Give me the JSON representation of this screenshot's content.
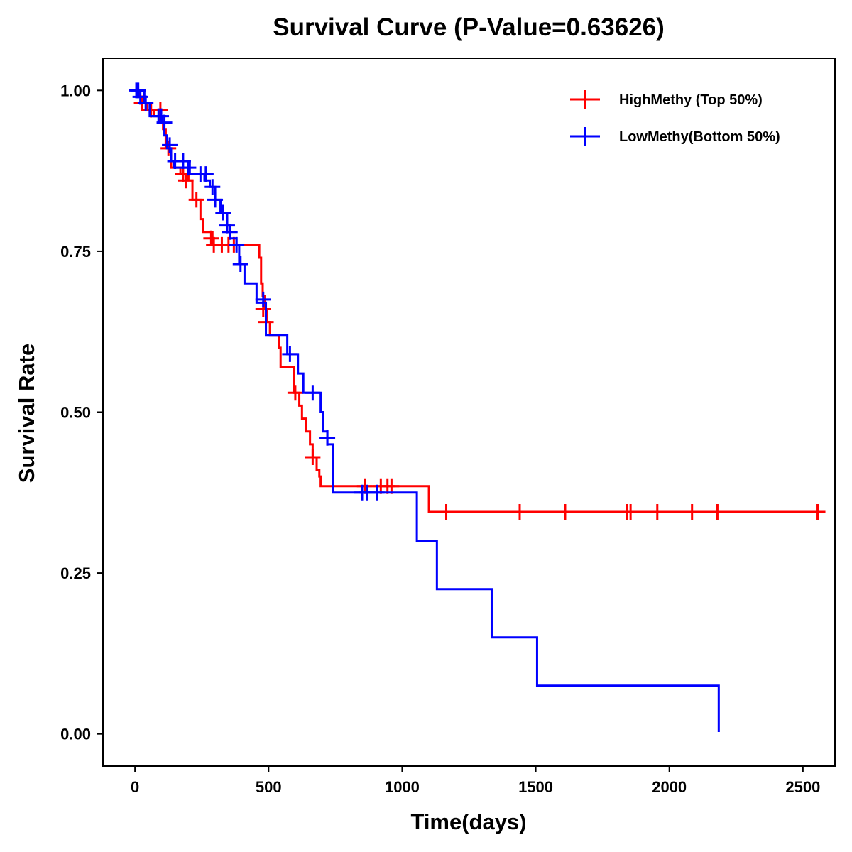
{
  "chart_data": {
    "type": "line",
    "title": "Survival Curve (P-Value=0.63626)",
    "xlabel": "Time(days)",
    "ylabel": "Survival Rate",
    "xlim": [
      -120,
      2620
    ],
    "ylim": [
      -0.05,
      1.05
    ],
    "x_ticks": [
      0,
      500,
      1000,
      1500,
      2000,
      2500
    ],
    "x_tick_labels": [
      "0",
      "500",
      "1000",
      "1500",
      "2000",
      "2500"
    ],
    "y_ticks": [
      0,
      0.25,
      0.5,
      0.75,
      1.0
    ],
    "y_tick_labels": [
      "0.00",
      "0.25",
      "0.50",
      "0.75",
      "1.00"
    ],
    "grid": false,
    "legend_position": "top-right",
    "series": [
      {
        "name": "HighMethy (Top 50%)",
        "color": "#ff0000",
        "steps": [
          [
            0,
            1.0
          ],
          [
            18,
            0.99
          ],
          [
            28,
            0.98
          ],
          [
            45,
            0.97
          ],
          [
            70,
            0.96
          ],
          [
            95,
            0.95
          ],
          [
            105,
            0.94
          ],
          [
            115,
            0.91
          ],
          [
            135,
            0.88
          ],
          [
            170,
            0.87
          ],
          [
            200,
            0.86
          ],
          [
            215,
            0.83
          ],
          [
            245,
            0.8
          ],
          [
            255,
            0.78
          ],
          [
            290,
            0.76
          ],
          [
            465,
            0.74
          ],
          [
            472,
            0.7
          ],
          [
            478,
            0.68
          ],
          [
            485,
            0.66
          ],
          [
            495,
            0.64
          ],
          [
            505,
            0.62
          ],
          [
            540,
            0.6
          ],
          [
            545,
            0.57
          ],
          [
            595,
            0.53
          ],
          [
            615,
            0.51
          ],
          [
            625,
            0.49
          ],
          [
            640,
            0.47
          ],
          [
            655,
            0.45
          ],
          [
            665,
            0.43
          ],
          [
            680,
            0.41
          ],
          [
            690,
            0.4
          ],
          [
            695,
            0.385
          ],
          [
            1100,
            0.345
          ],
          [
            2560,
            0.345
          ]
        ],
        "censor": [
          [
            25,
            0.98
          ],
          [
            60,
            0.97
          ],
          [
            95,
            0.97
          ],
          [
            125,
            0.91
          ],
          [
            180,
            0.87
          ],
          [
            190,
            0.86
          ],
          [
            230,
            0.83
          ],
          [
            285,
            0.77
          ],
          [
            295,
            0.76
          ],
          [
            325,
            0.76
          ],
          [
            350,
            0.76
          ],
          [
            370,
            0.76
          ],
          [
            480,
            0.66
          ],
          [
            490,
            0.64
          ],
          [
            600,
            0.53
          ],
          [
            665,
            0.43
          ],
          [
            860,
            0.385
          ],
          [
            920,
            0.385
          ],
          [
            945,
            0.385
          ],
          [
            960,
            0.385
          ],
          [
            1165,
            0.345
          ],
          [
            1440,
            0.345
          ],
          [
            1610,
            0.345
          ],
          [
            1840,
            0.345
          ],
          [
            1855,
            0.345
          ],
          [
            1955,
            0.345
          ],
          [
            2085,
            0.345
          ],
          [
            2180,
            0.345
          ],
          [
            2555,
            0.345
          ]
        ]
      },
      {
        "name": "LowMethy(Bottom 50%)",
        "color": "#0000ff",
        "steps": [
          [
            0,
            1.0
          ],
          [
            35,
            0.98
          ],
          [
            55,
            0.96
          ],
          [
            100,
            0.95
          ],
          [
            110,
            0.93
          ],
          [
            120,
            0.91
          ],
          [
            135,
            0.89
          ],
          [
            145,
            0.88
          ],
          [
            200,
            0.89
          ],
          [
            205,
            0.87
          ],
          [
            260,
            0.86
          ],
          [
            280,
            0.85
          ],
          [
            300,
            0.83
          ],
          [
            320,
            0.81
          ],
          [
            345,
            0.79
          ],
          [
            355,
            0.77
          ],
          [
            380,
            0.76
          ],
          [
            390,
            0.73
          ],
          [
            410,
            0.7
          ],
          [
            455,
            0.67
          ],
          [
            490,
            0.62
          ],
          [
            570,
            0.59
          ],
          [
            610,
            0.56
          ],
          [
            630,
            0.53
          ],
          [
            695,
            0.5
          ],
          [
            705,
            0.47
          ],
          [
            720,
            0.45
          ],
          [
            740,
            0.375
          ],
          [
            1055,
            0.3
          ],
          [
            1130,
            0.225
          ],
          [
            1335,
            0.15
          ],
          [
            1505,
            0.075
          ],
          [
            2185,
            0.003
          ]
        ],
        "censor": [
          [
            5,
            1.0
          ],
          [
            12,
            1.0
          ],
          [
            20,
            0.99
          ],
          [
            40,
            0.98
          ],
          [
            88,
            0.96
          ],
          [
            98,
            0.96
          ],
          [
            110,
            0.95
          ],
          [
            130,
            0.915
          ],
          [
            150,
            0.89
          ],
          [
            180,
            0.89
          ],
          [
            200,
            0.88
          ],
          [
            245,
            0.87
          ],
          [
            265,
            0.87
          ],
          [
            290,
            0.85
          ],
          [
            300,
            0.83
          ],
          [
            330,
            0.81
          ],
          [
            345,
            0.79
          ],
          [
            355,
            0.78
          ],
          [
            380,
            0.76
          ],
          [
            395,
            0.73
          ],
          [
            480,
            0.675
          ],
          [
            580,
            0.59
          ],
          [
            665,
            0.53
          ],
          [
            720,
            0.46
          ],
          [
            850,
            0.375
          ],
          [
            870,
            0.375
          ],
          [
            905,
            0.375
          ]
        ]
      }
    ]
  }
}
